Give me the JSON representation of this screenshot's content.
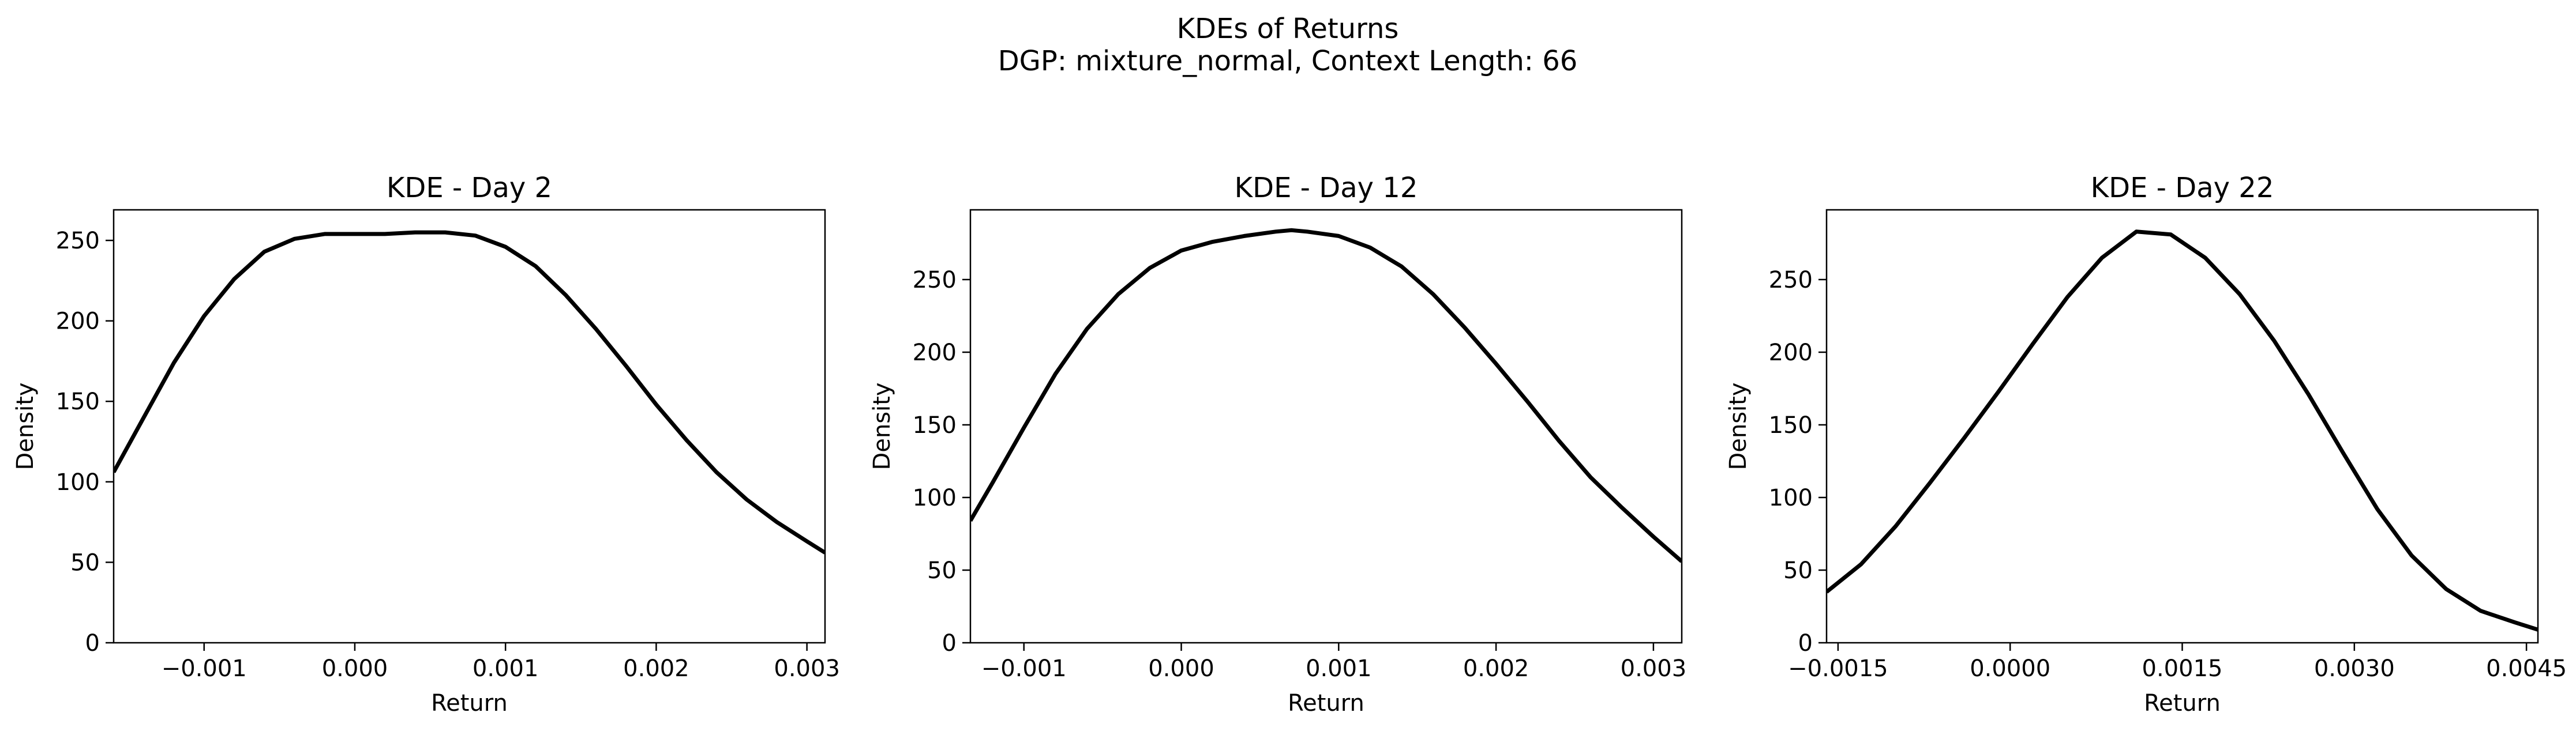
{
  "figure": {
    "title_line1": "KDEs of Returns",
    "title_line2": "DGP: mixture_normal, Context Length: 66"
  },
  "colors": {
    "line": "#000000",
    "axes": "#000000",
    "background": "#ffffff"
  },
  "chart_data": [
    {
      "type": "line",
      "title": "KDE - Day 2",
      "xlabel": "Return",
      "ylabel": "Density",
      "xlim": [
        -0.0016,
        0.00312
      ],
      "ylim": [
        0,
        269
      ],
      "xticks": [
        -0.001,
        0.0,
        0.001,
        0.002,
        0.003
      ],
      "xtick_labels": [
        "−0.001",
        "0.000",
        "0.001",
        "0.002",
        "0.003"
      ],
      "yticks": [
        0,
        50,
        100,
        150,
        200,
        250
      ],
      "ytick_labels": [
        "0",
        "50",
        "100",
        "150",
        "200",
        "250"
      ],
      "grid": false,
      "x": [
        -0.0016,
        -0.0014,
        -0.0012,
        -0.001,
        -0.0008,
        -0.0006,
        -0.0004,
        -0.0002,
        0.0,
        0.0002,
        0.0004,
        0.0006,
        0.0008,
        0.001,
        0.0012,
        0.0014,
        0.0016,
        0.0018,
        0.002,
        0.0022,
        0.0024,
        0.0026,
        0.0028,
        0.003,
        0.00312
      ],
      "y": [
        106,
        140,
        174,
        203,
        226,
        243,
        251,
        254,
        254,
        254,
        255,
        255,
        253,
        246,
        234,
        216,
        195,
        172,
        148,
        126,
        106,
        89,
        75,
        63,
        56
      ]
    },
    {
      "type": "line",
      "title": "KDE - Day 12",
      "xlabel": "Return",
      "ylabel": "Density",
      "xlim": [
        -0.00134,
        0.00318
      ],
      "ylim": [
        0,
        298
      ],
      "xticks": [
        -0.001,
        0.0,
        0.001,
        0.002,
        0.003
      ],
      "xtick_labels": [
        "−0.001",
        "0.000",
        "0.001",
        "0.002",
        "0.003"
      ],
      "yticks": [
        0,
        50,
        100,
        150,
        200,
        250
      ],
      "ytick_labels": [
        "0",
        "50",
        "100",
        "150",
        "200",
        "250"
      ],
      "grid": false,
      "x": [
        -0.00134,
        -0.0012,
        -0.001,
        -0.0008,
        -0.0006,
        -0.0004,
        -0.0002,
        0.0,
        0.0002,
        0.0004,
        0.0006,
        0.0007,
        0.0008,
        0.001,
        0.0012,
        0.0014,
        0.0016,
        0.0018,
        0.002,
        0.0022,
        0.0024,
        0.0026,
        0.0028,
        0.003,
        0.00318
      ],
      "y": [
        84,
        110,
        148,
        185,
        216,
        240,
        258,
        270,
        276,
        280,
        283,
        284,
        283,
        280,
        272,
        259,
        240,
        217,
        192,
        166,
        139,
        114,
        93,
        73,
        56
      ]
    },
    {
      "type": "line",
      "title": "KDE - Day 22",
      "xlabel": "Return",
      "ylabel": "Density",
      "xlim": [
        -0.0016,
        0.0046
      ],
      "ylim": [
        0,
        298
      ],
      "xticks": [
        -0.0015,
        0.0,
        0.0015,
        0.003,
        0.0045
      ],
      "xtick_labels": [
        "−0.0015",
        "0.0000",
        "0.0015",
        "0.0030",
        "0.0045"
      ],
      "yticks": [
        0,
        50,
        100,
        150,
        200,
        250
      ],
      "ytick_labels": [
        "0",
        "50",
        "100",
        "150",
        "200",
        "250"
      ],
      "grid": false,
      "x": [
        -0.0016,
        -0.0013,
        -0.001,
        -0.0007,
        -0.0004,
        -0.0001,
        0.0002,
        0.0005,
        0.0008,
        0.0011,
        0.0014,
        0.0017,
        0.002,
        0.0023,
        0.0026,
        0.0029,
        0.0032,
        0.0035,
        0.0038,
        0.0041,
        0.0044,
        0.0046
      ],
      "y": [
        35,
        54,
        80,
        110,
        141,
        173,
        206,
        238,
        265,
        283,
        281,
        265,
        240,
        208,
        171,
        131,
        92,
        60,
        37,
        22,
        14,
        9
      ]
    }
  ]
}
